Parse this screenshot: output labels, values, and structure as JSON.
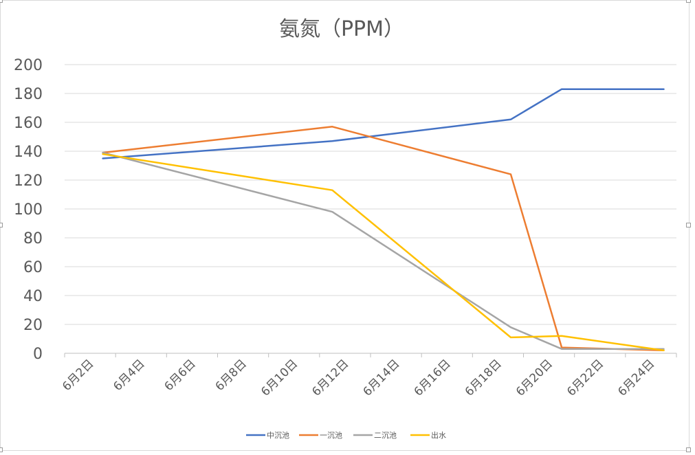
{
  "chart_data": {
    "type": "line",
    "title": "氨氮（PPM）",
    "xlabel": "",
    "ylabel": "",
    "ylim": [
      0,
      200
    ],
    "yticks": [
      "0",
      "20",
      "40",
      "60",
      "80",
      "100",
      "120",
      "140",
      "160",
      "180",
      "200"
    ],
    "categories": [
      "6月2日",
      "6月4日",
      "6月6日",
      "6月8日",
      "6月10日",
      "6月12日",
      "6月14日",
      "6月16日",
      "6月18日",
      "6月20日",
      "6月22日",
      "6月24日"
    ],
    "x_day_start": 2,
    "x_day_step": 2,
    "x_day_min": 1,
    "x_day_max": 25,
    "series": [
      {
        "name": "中沉池",
        "color": "#4472C4",
        "x": [
          2.5,
          11.5,
          18.5,
          20.5,
          24.5
        ],
        "values": [
          135,
          147,
          162,
          183,
          183
        ]
      },
      {
        "name": "一沉池",
        "color": "#ED7D31",
        "x": [
          2.5,
          11.5,
          18.5,
          20.5,
          24.5
        ],
        "values": [
          139,
          157,
          124,
          4,
          2
        ]
      },
      {
        "name": "二沉池",
        "color": "#A5A5A5",
        "x": [
          2.5,
          11.5,
          18.5,
          20.5,
          24.5
        ],
        "values": [
          139,
          98,
          18,
          3,
          3
        ]
      },
      {
        "name": "出水",
        "color": "#FFC000",
        "x": [
          2.5,
          11.5,
          18.5,
          20.5,
          24.5
        ],
        "values": [
          138,
          113,
          11,
          12,
          2
        ]
      }
    ],
    "legend_position": "bottom",
    "grid": true
  }
}
